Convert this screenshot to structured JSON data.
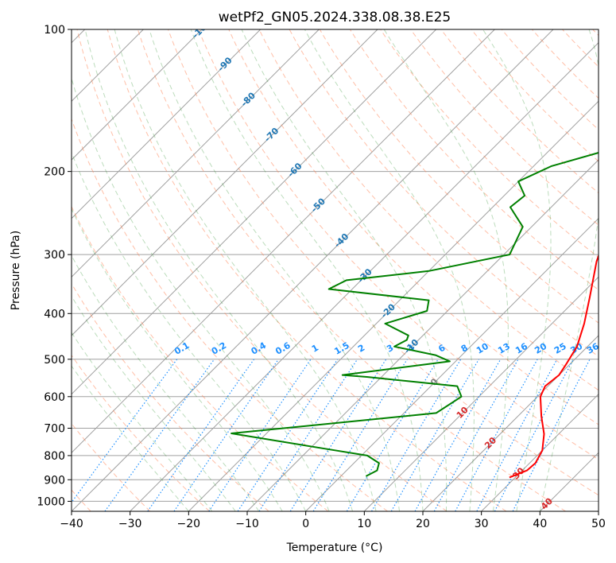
{
  "chart_data": {
    "type": "line",
    "title": "wetPf2_GN05.2024.338.08.38.E25",
    "xlabel": "Temperature (°C)",
    "ylabel": "Pressure (hPa)",
    "xlim": [
      -40,
      50
    ],
    "ylim": [
      1050,
      100
    ],
    "y_scale": "log",
    "x_ticks": [
      -40,
      -30,
      -20,
      -10,
      0,
      10,
      20,
      30,
      40,
      50
    ],
    "y_ticks": [
      100,
      200,
      300,
      400,
      500,
      600,
      700,
      800,
      900,
      1000
    ],
    "grid": true,
    "series": [
      {
        "id": "temperature",
        "color": "#ff0000",
        "points": [
          [
            29,
            890
          ],
          [
            30.8,
            860
          ],
          [
            31,
            830
          ],
          [
            30,
            780
          ],
          [
            27.5,
            720
          ],
          [
            24,
            660
          ],
          [
            20.5,
            600
          ],
          [
            19.5,
            570
          ],
          [
            20,
            540
          ],
          [
            19.3,
            510
          ],
          [
            18.2,
            470
          ],
          [
            15.5,
            420
          ],
          [
            12,
            370
          ],
          [
            7,
            310
          ],
          [
            3.5,
            265
          ],
          [
            2.8,
            225
          ],
          [
            3,
            200
          ],
          [
            3.8,
            170
          ],
          [
            4.5,
            150
          ],
          [
            5.5,
            130
          ],
          [
            6.2,
            115
          ],
          [
            8,
            103
          ],
          [
            8.5,
            100
          ]
        ]
      },
      {
        "id": "dewpoint",
        "color": "#008000",
        "points": [
          [
            4.3,
            885
          ],
          [
            5.2,
            860
          ],
          [
            4.3,
            830
          ],
          [
            1,
            800
          ],
          [
            -7,
            775
          ],
          [
            -26,
            718
          ],
          [
            5.5,
            650
          ],
          [
            7,
            600
          ],
          [
            4.5,
            570
          ],
          [
            -12.5,
            545
          ],
          [
            -17,
            540
          ],
          [
            -1,
            505
          ],
          [
            -4.5,
            490
          ],
          [
            -13,
            470
          ],
          [
            -12,
            455
          ],
          [
            -12.5,
            445
          ],
          [
            -18.5,
            420
          ],
          [
            -13.5,
            395
          ],
          [
            -15,
            375
          ],
          [
            -34,
            355
          ],
          [
            -32.5,
            340
          ],
          [
            -20,
            325
          ],
          [
            -9,
            300
          ],
          [
            -11.5,
            262
          ],
          [
            -17,
            238
          ],
          [
            -16.5,
            225
          ],
          [
            -20,
            210
          ],
          [
            -17,
            195
          ],
          [
            -10,
            180
          ],
          [
            -7.5,
            160
          ],
          [
            -7,
            145
          ],
          [
            -3,
            120
          ],
          [
            0.5,
            110
          ],
          [
            2.5,
            103
          ],
          [
            3,
            100
          ]
        ]
      }
    ],
    "reference_lines": {
      "dry_adiabat_color": "#ff7f50",
      "moist_adiabat_color": "#228b22",
      "mixing_ratio_color": "#1e90ff",
      "isotherm_color": "#a0a0a0"
    },
    "isotherm_labels": [
      "-100",
      "-90",
      "-80",
      "-70",
      "-60",
      "-50",
      "-40",
      "-30",
      "-20",
      "-10",
      "0",
      "10",
      "20",
      "30",
      "40"
    ],
    "mixing_ratio_labels": [
      "0.1",
      "0.2",
      "0.4",
      "0.6",
      "1",
      "1.5",
      "2",
      "3",
      "4",
      "6",
      "8",
      "10",
      "13",
      "16",
      "20",
      "25",
      "30",
      "36"
    ]
  }
}
